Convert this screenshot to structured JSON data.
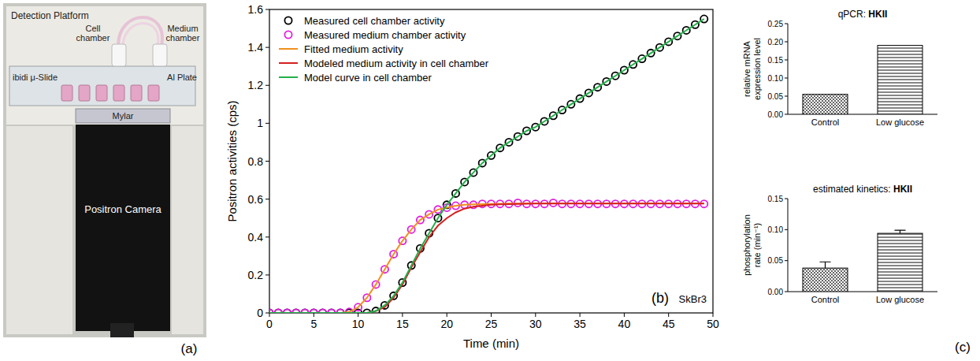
{
  "photo": {
    "labels": [
      "Detection Platform",
      "Cell chamber",
      "Medium chamber",
      "ibidi μ-Slide",
      "Al Plate",
      "Mylar",
      "Positron Camera"
    ],
    "annotations": [
      "(a)"
    ]
  },
  "chart_data": [
    {
      "type": "line",
      "x_label": "Time (min)",
      "y_label": "Positron activities (cps)",
      "annotations": [
        "(b)",
        "SkBr3"
      ],
      "xlim": [
        0,
        50
      ],
      "xticks": [
        0,
        5,
        10,
        15,
        20,
        25,
        30,
        35,
        40,
        45,
        50
      ],
      "ylim": [
        0,
        1.6
      ],
      "yticks": [
        0,
        0.2,
        0.4,
        0.6,
        0.8,
        1.0,
        1.2,
        1.4,
        1.6
      ],
      "legend": "upper left",
      "x": [
        0,
        1,
        2,
        3,
        4,
        5,
        6,
        7,
        8,
        9,
        10,
        11,
        12,
        13,
        14,
        15,
        16,
        17,
        18,
        19,
        20,
        21,
        22,
        23,
        24,
        25,
        26,
        27,
        28,
        29,
        30,
        31,
        32,
        33,
        34,
        35,
        36,
        37,
        38,
        39,
        40,
        41,
        42,
        43,
        44,
        45,
        46,
        47,
        48,
        49
      ],
      "series": [
        {
          "name": "Measured cell chamber activity",
          "type": "scatter",
          "marker": "circle",
          "color": "#000000",
          "values": [
            0,
            0,
            0,
            0,
            0,
            0,
            0,
            0,
            0,
            0,
            0,
            0,
            0.01,
            0.04,
            0.09,
            0.16,
            0.25,
            0.34,
            0.42,
            0.5,
            0.57,
            0.63,
            0.69,
            0.74,
            0.79,
            0.83,
            0.87,
            0.9,
            0.93,
            0.96,
            0.98,
            1.01,
            1.04,
            1.07,
            1.1,
            1.13,
            1.16,
            1.19,
            1.22,
            1.25,
            1.28,
            1.31,
            1.34,
            1.37,
            1.4,
            1.43,
            1.46,
            1.49,
            1.52,
            1.55
          ]
        },
        {
          "name": "Measured medium chamber activity",
          "type": "scatter",
          "marker": "circle",
          "color": "#e020e0",
          "values": [
            0,
            0,
            0,
            0,
            0,
            0,
            0,
            0,
            0,
            0.005,
            0.03,
            0.08,
            0.15,
            0.23,
            0.31,
            0.38,
            0.44,
            0.49,
            0.52,
            0.545,
            0.555,
            0.565,
            0.57,
            0.57,
            0.575,
            0.575,
            0.575,
            0.575,
            0.58,
            0.575,
            0.575,
            0.575,
            0.58,
            0.575,
            0.575,
            0.575,
            0.575,
            0.575,
            0.575,
            0.575,
            0.575,
            0.575,
            0.575,
            0.575,
            0.575,
            0.575,
            0.575,
            0.575,
            0.575,
            0.575
          ]
        },
        {
          "name": "Fitted medium activity",
          "type": "line",
          "line_style": "solid",
          "color": "#f0901e",
          "values": [
            0,
            0,
            0,
            0,
            0,
            0,
            0,
            0,
            0,
            0.005,
            0.03,
            0.08,
            0.15,
            0.23,
            0.31,
            0.38,
            0.44,
            0.49,
            0.52,
            0.545,
            0.555,
            0.565,
            0.57,
            0.572,
            0.574,
            0.575,
            0.576,
            0.577,
            0.577,
            0.578,
            0.578,
            0.578,
            0.578,
            0.578,
            0.578,
            0.578,
            0.578,
            0.578,
            0.578,
            0.578,
            0.578,
            0.578,
            0.578,
            0.578,
            0.578,
            0.578,
            0.578,
            0.578,
            0.578,
            0.578
          ]
        },
        {
          "name": "Modeled medium activity in cell chamber",
          "type": "line",
          "line_style": "solid",
          "color": "#d42020",
          "values": [
            0,
            0,
            0,
            0,
            0,
            0,
            0,
            0,
            0,
            0,
            0,
            0,
            0.01,
            0.03,
            0.08,
            0.15,
            0.24,
            0.32,
            0.4,
            0.46,
            0.5,
            0.53,
            0.55,
            0.56,
            0.565,
            0.57,
            0.572,
            0.574,
            0.575,
            0.576,
            0.577,
            0.577,
            0.577,
            0.577,
            0.577,
            0.577,
            0.577,
            0.577,
            0.577,
            0.577,
            0.577,
            0.577,
            0.577,
            0.577,
            0.577,
            0.577,
            0.577,
            0.577,
            0.577,
            0.577
          ]
        },
        {
          "name": "Model curve  in cell chamber",
          "type": "line",
          "line_style": "solid",
          "color": "#22b04a",
          "values": [
            0,
            0,
            0,
            0,
            0,
            0,
            0,
            0,
            0,
            0,
            0,
            0,
            0.01,
            0.04,
            0.09,
            0.16,
            0.25,
            0.34,
            0.42,
            0.5,
            0.57,
            0.63,
            0.69,
            0.74,
            0.79,
            0.83,
            0.87,
            0.9,
            0.93,
            0.96,
            0.98,
            1.01,
            1.04,
            1.07,
            1.1,
            1.13,
            1.16,
            1.19,
            1.22,
            1.25,
            1.28,
            1.31,
            1.34,
            1.37,
            1.4,
            1.43,
            1.46,
            1.49,
            1.52,
            1.55
          ]
        }
      ]
    },
    {
      "type": "bar",
      "title": "qPCR: HKII",
      "y_label": "relative mRNA expression level",
      "categories": [
        "Control",
        "Low glucose"
      ],
      "values": [
        0.055,
        0.19
      ],
      "colors": [
        "#555555",
        "#444444"
      ],
      "ylim": [
        0,
        0.25
      ],
      "yticks": [
        {
          "value": 0,
          "label": "0.00"
        },
        {
          "value": 0.05,
          "label": "0.05"
        },
        {
          "value": 0.1,
          "label": "0.10"
        },
        {
          "value": 0.15,
          "label": "0.15"
        },
        {
          "value": 0.2,
          "label": "0.20"
        },
        {
          "value": 0.25,
          "label": "0.25"
        }
      ]
    },
    {
      "type": "bar",
      "title": "estimated kinetics: HKII",
      "y_label": "phosphorylation rate (min⁻¹)",
      "annotations": [
        "(c)"
      ],
      "categories": [
        "Control",
        "Low glucose"
      ],
      "values": [
        0.038,
        0.094
      ],
      "errors": [
        0.01,
        0.005
      ],
      "colors": [
        "#555555",
        "#444444"
      ],
      "ylim": [
        0,
        0.15
      ],
      "yticks": [
        {
          "value": 0,
          "label": "0.00"
        },
        {
          "value": 0.05,
          "label": "0.05"
        },
        {
          "value": 0.1,
          "label": "0.10"
        },
        {
          "value": 0.15,
          "label": "0.15"
        }
      ]
    }
  ]
}
